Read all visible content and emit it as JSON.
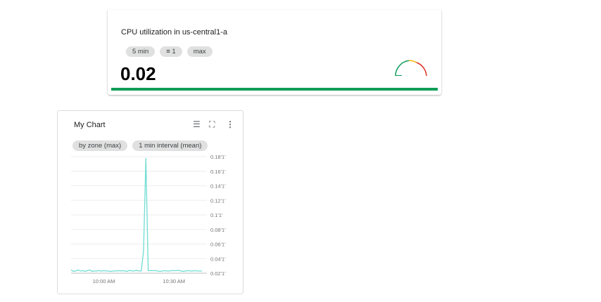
{
  "scorecard": {
    "title": "CPU utilization in us-central1-a",
    "chips": [
      "5 min",
      "1",
      "max"
    ],
    "value": "0.02",
    "bar_color": "#0f9d58",
    "gauge_colors": [
      "#0f9d58",
      "#f4b400",
      "#d93025"
    ]
  },
  "chart_card": {
    "title": "My Chart",
    "chips": [
      "by zone (max)",
      "1 min interval (mean)"
    ],
    "icons": [
      "legend-icon",
      "fullscreen-icon",
      "more-vert-icon"
    ]
  },
  "chart_data": {
    "type": "line",
    "color": "#6fdcd2",
    "grid": true,
    "x_start": "9:46 AM",
    "x_step_minutes": 1,
    "x_ticks": [
      "10:00 AM",
      "10:30 AM"
    ],
    "y_ticks": [
      "0.18'1'",
      "0.16'1'",
      "0.14'1'",
      "0.12'1'",
      "0.1'1'",
      "0.08'1'",
      "0.06'1'",
      "0.04'1'",
      "0.02'1'"
    ],
    "ylim": [
      0.02,
      0.18
    ],
    "values": [
      0.0245,
      0.0225,
      0.023,
      0.0245,
      0.023,
      0.0235,
      0.0225,
      0.0235,
      0.0245,
      0.0225,
      0.023,
      0.023,
      0.0235,
      0.023,
      0.0235,
      0.023,
      0.023,
      0.0225,
      0.023,
      0.023,
      0.0235,
      0.023,
      0.0235,
      0.023,
      0.0225,
      0.024,
      0.023,
      0.023,
      0.024,
      0.023,
      0.023,
      0.05,
      0.178,
      0.0235,
      0.0235,
      0.0235,
      0.0235,
      0.023,
      0.0225,
      0.023,
      0.0235,
      0.023,
      0.023,
      0.0235,
      0.0235,
      0.0235,
      0.024,
      0.023,
      0.0225,
      0.023,
      0.0235,
      0.023,
      0.023,
      0.0235,
      0.023,
      0.023,
      0.023
    ]
  }
}
